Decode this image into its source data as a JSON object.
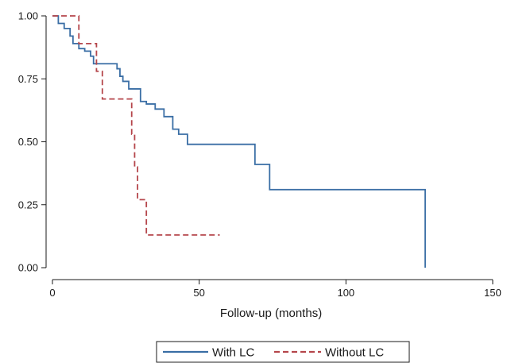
{
  "chart_data": {
    "type": "line",
    "title": "",
    "xlabel": "Follow-up (months)",
    "ylabel": "",
    "xlim": [
      0,
      150
    ],
    "ylim": [
      0,
      1
    ],
    "x_ticks": [
      0,
      50,
      100,
      150
    ],
    "x_tick_labels": [
      "0",
      "50",
      "100",
      "150"
    ],
    "y_ticks": [
      0,
      0.25,
      0.5,
      0.75,
      1
    ],
    "y_tick_labels": [
      "0.00",
      "0.25",
      "0.50",
      "0.75",
      "1.00"
    ],
    "grid": false,
    "legend_position": "bottom-center",
    "step": true,
    "series": [
      {
        "name": "With LC",
        "color": "#3a6ea5",
        "dash": "solid",
        "x": [
          0,
          2,
          4,
          6,
          7,
          9,
          11,
          13,
          14,
          22,
          23,
          24,
          26,
          30,
          32,
          35,
          38,
          41,
          43,
          46,
          69,
          74,
          127
        ],
        "y": [
          1.0,
          0.97,
          0.95,
          0.92,
          0.89,
          0.87,
          0.86,
          0.84,
          0.81,
          0.79,
          0.76,
          0.74,
          0.71,
          0.66,
          0.65,
          0.63,
          0.6,
          0.55,
          0.53,
          0.49,
          0.41,
          0.31,
          0.0
        ]
      },
      {
        "name": "Without LC",
        "color": "#b5464b",
        "dash": "dashed",
        "x": [
          0,
          9,
          15,
          17,
          27,
          28,
          29,
          32,
          57
        ],
        "y": [
          1.0,
          0.89,
          0.78,
          0.67,
          0.53,
          0.4,
          0.27,
          0.13,
          0.13
        ]
      }
    ]
  }
}
